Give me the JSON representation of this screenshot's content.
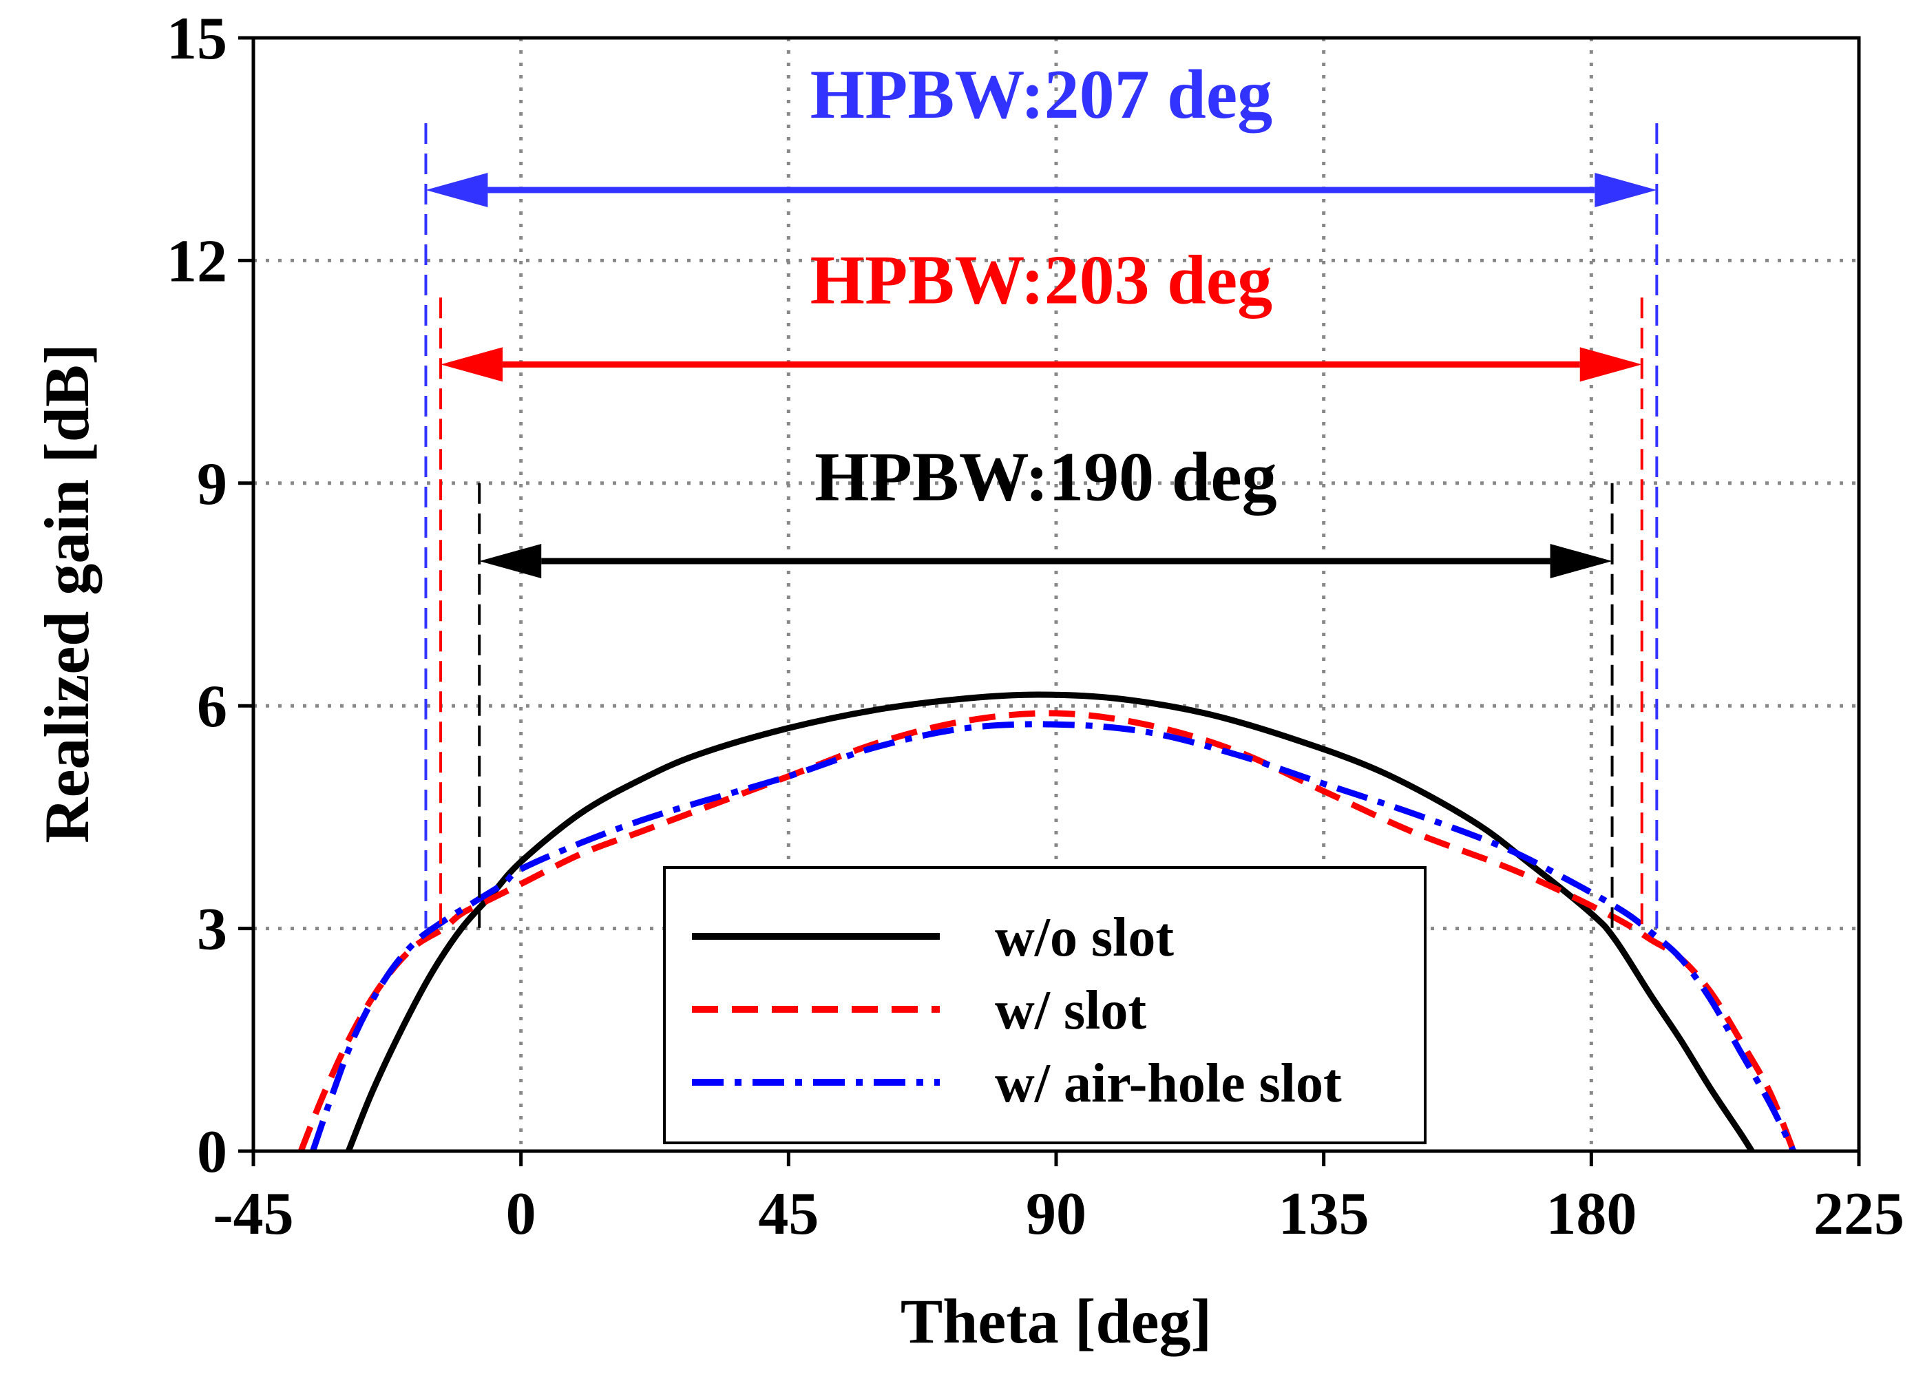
{
  "chart_data": {
    "type": "line",
    "title": "",
    "xlabel": "Theta [deg]",
    "ylabel": "Realized gain [dB]",
    "xlim": [
      -45,
      225
    ],
    "ylim": [
      0,
      15
    ],
    "xticks": [
      -45,
      0,
      45,
      90,
      135,
      180,
      225
    ],
    "yticks": [
      0,
      3,
      6,
      9,
      12,
      15
    ],
    "x_tick_labels": [
      "-45",
      "0",
      "45",
      "90",
      "135",
      "180",
      "225"
    ],
    "y_tick_labels": [
      "0",
      "3",
      "6",
      "9",
      "12",
      "15"
    ],
    "grid": true,
    "legend_position": "bottom-center",
    "series": [
      {
        "name": "w/o slot",
        "color": "#000000",
        "dash": "solid",
        "x": [
          -29,
          -25,
          -20,
          -15,
          -10,
          -5,
          0,
          10,
          20,
          30,
          45,
          60,
          75,
          87,
          100,
          115,
          130,
          145,
          160,
          170,
          180,
          184,
          190,
          195,
          200,
          205,
          207
        ],
        "y": [
          0,
          0.8,
          1.65,
          2.4,
          3.0,
          3.45,
          3.9,
          4.55,
          5.0,
          5.35,
          5.7,
          5.95,
          6.1,
          6.15,
          6.1,
          5.9,
          5.55,
          5.1,
          4.45,
          3.85,
          3.2,
          2.85,
          2.1,
          1.5,
          0.85,
          0.25,
          0
        ]
      },
      {
        "name": "w/ slot",
        "color": "#ff0000",
        "dash": "dashed",
        "x": [
          -37,
          -33,
          -28,
          -23,
          -18,
          -13,
          -10,
          -5,
          0,
          10,
          20,
          30,
          45,
          60,
          75,
          90,
          105,
          120,
          135,
          150,
          165,
          175,
          185,
          190,
          195,
          200,
          205,
          210,
          214
        ],
        "y": [
          0,
          0.8,
          1.65,
          2.3,
          2.75,
          3.0,
          3.2,
          3.4,
          3.6,
          4.0,
          4.3,
          4.6,
          5.05,
          5.5,
          5.8,
          5.9,
          5.75,
          5.4,
          4.85,
          4.3,
          3.85,
          3.5,
          3.1,
          2.85,
          2.6,
          2.15,
          1.5,
          0.8,
          0
        ]
      },
      {
        "name": "w/ air-hole slot",
        "color": "#0000ff",
        "dash": "dashdot",
        "x": [
          -35,
          -32,
          -28,
          -23,
          -18,
          -13,
          -8,
          -3,
          0,
          10,
          20,
          30,
          45,
          60,
          75,
          90,
          105,
          120,
          135,
          150,
          165,
          175,
          185,
          190,
          195,
          200,
          205,
          210,
          214
        ],
        "y": [
          0,
          0.7,
          1.55,
          2.3,
          2.8,
          3.1,
          3.35,
          3.6,
          3.8,
          4.15,
          4.45,
          4.7,
          5.05,
          5.45,
          5.7,
          5.75,
          5.65,
          5.35,
          4.95,
          4.55,
          4.1,
          3.7,
          3.25,
          2.95,
          2.6,
          2.05,
          1.35,
          0.65,
          0
        ]
      }
    ],
    "annotations": [
      {
        "label": "HPBW:207 deg",
        "color": "#3333ff",
        "x_start": -16,
        "x_end": 191,
        "arrow_y": 12.95,
        "line_top": 13.85,
        "label_y": 14.2
      },
      {
        "label": "HPBW:203 deg",
        "color": "#ff0000",
        "x_start": -13.5,
        "x_end": 188.5,
        "arrow_y": 10.6,
        "line_top": 11.5,
        "label_y": 11.7
      },
      {
        "label": "HPBW:190 deg",
        "color": "#000000",
        "x_start": -7,
        "x_end": 183.5,
        "arrow_y": 7.95,
        "line_top": 9.0,
        "label_y": 9.05
      }
    ]
  }
}
